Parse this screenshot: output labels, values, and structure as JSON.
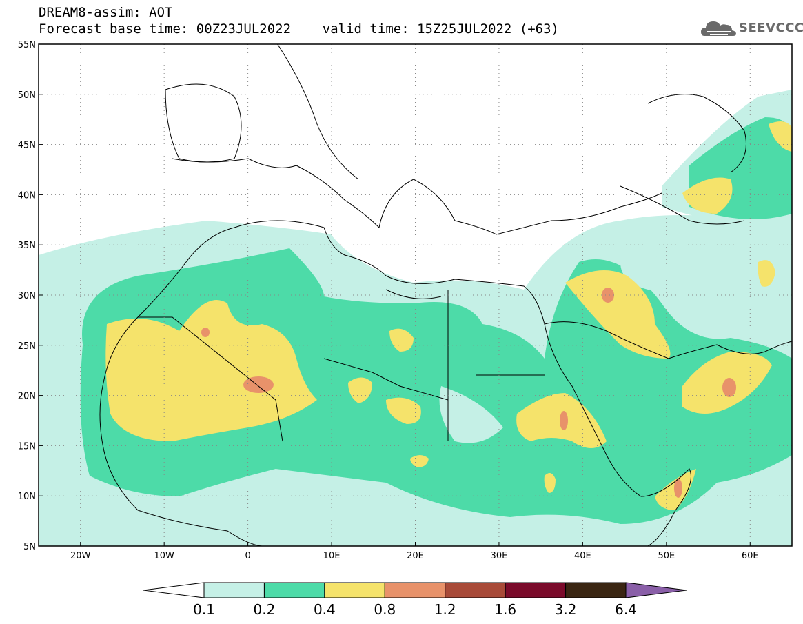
{
  "title": {
    "line1": "DREAM8-assim: AOT",
    "line2": "Forecast base time: 00Z23JUL2022    valid time: 15Z25JUL2022 (+63)"
  },
  "logo": {
    "text": "SEEVCCC",
    "icon": "cloud-icon"
  },
  "map": {
    "lon_range": [
      -25,
      65
    ],
    "lat_range": [
      5,
      55
    ],
    "lat_labels": [
      "55N",
      "50N",
      "45N",
      "40N",
      "35N",
      "30N",
      "25N",
      "20N",
      "15N",
      "10N",
      "5N"
    ],
    "lon_labels": [
      "20W",
      "10W",
      "0",
      "10E",
      "20E",
      "30E",
      "40E",
      "50E",
      "60E"
    ],
    "grid": "dotted"
  },
  "colorbar": {
    "colors": [
      "#ffffff",
      "#c5f0e6",
      "#4ddba8",
      "#f5e36b",
      "#e8926a",
      "#a84a38",
      "#7a0a2a",
      "#3a2512",
      "#8a5fa8"
    ],
    "tick_labels": [
      "0.1",
      "0.2",
      "0.4",
      "0.8",
      "1.2",
      "1.6",
      "3.2",
      "6.4"
    ]
  }
}
